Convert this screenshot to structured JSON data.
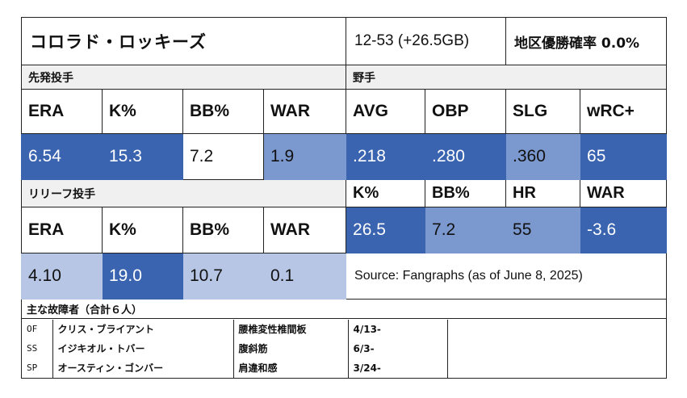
{
  "header": {
    "team": "コロラド・ロッキーズ",
    "record": "12-53 (+26.5GB)",
    "standing": "地区優勝確率 0.0%"
  },
  "pitching": {
    "section_label": "先発投手",
    "headers": [
      "ERA",
      "K%",
      "BB%",
      "WAR"
    ],
    "values": [
      "6.54",
      "15.3",
      "7.2",
      "1.9"
    ],
    "colors": [
      "dark",
      "dark",
      "white",
      "mid"
    ]
  },
  "batting": {
    "section_label": "野手",
    "headers1": [
      "AVG",
      "OBP",
      "SLG",
      "wRC+"
    ],
    "values1": [
      ".218",
      ".280",
      ".360",
      "65"
    ],
    "colors1": [
      "dark",
      "dark",
      "mid",
      "dark"
    ],
    "headers2": [
      "K%",
      "BB%",
      "HR",
      "WAR"
    ],
    "values2": [
      "26.5",
      "7.2",
      "55",
      "-3.6"
    ],
    "colors2": [
      "dark",
      "mid",
      "mid",
      "dark"
    ]
  },
  "relief": {
    "section_label": "リリーフ投手",
    "headers": [
      "ERA",
      "K%",
      "BB%",
      "WAR"
    ],
    "values": [
      "4.10",
      "19.0",
      "10.7",
      "0.1"
    ],
    "colors": [
      "light",
      "dark",
      "light",
      "light"
    ]
  },
  "source": "Source: Fangraphs (as of June 8, 2025)",
  "injuries": {
    "title": "主な故障者（合計６人）",
    "rows": [
      {
        "pos": "OF",
        "name": "クリス・ブライアント",
        "injury": "腰椎変性椎間板",
        "date": "4/13-"
      },
      {
        "pos": "SS",
        "name": "イジキオル・トバー",
        "injury": "腹斜筋",
        "date": "6/3-"
      },
      {
        "pos": "SP",
        "name": "オースティン・ゴンバー",
        "injury": "肩違和感",
        "date": "3/24-"
      }
    ]
  },
  "palette": {
    "dark": "#3a63b0",
    "mid": "#7b98cf",
    "light": "#b6c6e4"
  }
}
